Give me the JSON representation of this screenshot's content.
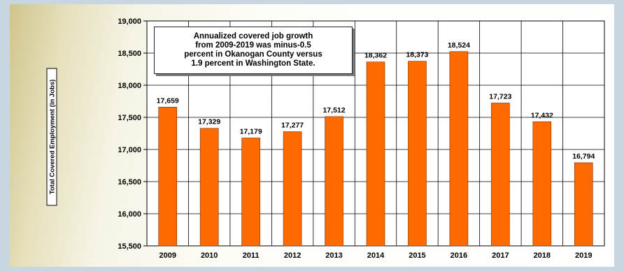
{
  "chart_data": {
    "type": "bar",
    "categories": [
      "2009",
      "2010",
      "2011",
      "2012",
      "2013",
      "2014",
      "2015",
      "2016",
      "2017",
      "2018",
      "2019"
    ],
    "values": [
      17659,
      17329,
      17179,
      17277,
      17512,
      18362,
      18373,
      18524,
      17723,
      17432,
      16794
    ],
    "data_labels": [
      "17,659",
      "17,329",
      "17,179",
      "17,277",
      "17,512",
      "18,362",
      "18,373",
      "18,524",
      "17,723",
      "17,432",
      "16,794"
    ],
    "ylabel": "Total Covered Employment (in Jobs)",
    "ylim": [
      15500,
      19000
    ],
    "yticks": [
      15500,
      16000,
      16500,
      17000,
      17500,
      18000,
      18500,
      19000
    ],
    "ytick_labels": [
      "15,500",
      "16,000",
      "16,500",
      "17,000",
      "17,500",
      "18,000",
      "18,500",
      "19,000"
    ],
    "annotation": "Annualized covered job growth\nfrom 2009-2019 was minus-0.5\npercent in Okanogan County versus\n1.9 percent in Washington State.",
    "bar_color": "#ff6a00",
    "grid": true
  }
}
